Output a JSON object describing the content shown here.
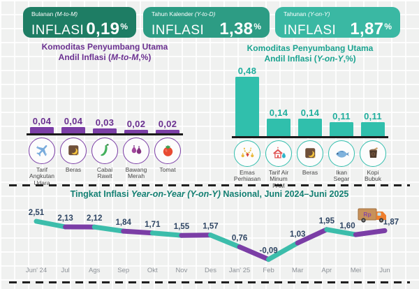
{
  "header_cards": [
    {
      "period_prefix": "Bulanan ",
      "period_italic": "(M-to-M)",
      "label": "INFLASI",
      "value": "0,19",
      "unit": "%",
      "bg": "#1e7d64"
    },
    {
      "period_prefix": "Tahun Kalender ",
      "period_italic": "(Y-to-D)",
      "label": "INFLASI",
      "value": "1,38",
      "unit": "%",
      "bg": "#2d9c84"
    },
    {
      "period_prefix": "Tahunan ",
      "period_italic": "(Y-on-Y)",
      "label": "INFLASI",
      "value": "1,87",
      "unit": "%",
      "bg": "#3ab8a3"
    }
  ],
  "chart_data": [
    {
      "type": "bar",
      "id": "mtm-commodities",
      "title_line1": "Komoditas Penyumbang Utama",
      "title_line2_prefix": "Andil Inflasi (",
      "title_line2_italic": "M-to-M",
      "title_line2_suffix": ",%)",
      "categories": [
        "Tarif Angkutan Udara",
        "Beras",
        "Cabai Rawit",
        "Bawang Merah",
        "Tomat"
      ],
      "values": [
        0.04,
        0.04,
        0.03,
        0.02,
        0.02
      ],
      "value_labels": [
        "0,04",
        "0,04",
        "0,03",
        "0,02",
        "0,02"
      ],
      "icons": [
        "airplane-icon",
        "rice-sack-icon",
        "chili-icon",
        "shallot-icon",
        "tomato-icon"
      ],
      "bar_color": "#7b3ea6",
      "label_color": "#6a3090",
      "icon_border": "#7b3ea6",
      "ylim": [
        0,
        0.05
      ],
      "grid": false,
      "xlabel": "",
      "ylabel": ""
    },
    {
      "type": "bar",
      "id": "yoy-commodities",
      "title_line1": "Komoditas Penyumbang Utama",
      "title_line2_prefix": "Andil Inflasi (",
      "title_line2_italic": "Y-on-Y",
      "title_line2_suffix": ",%)",
      "categories": [
        "Emas Perhiasan",
        "Tarif Air Minum PAM",
        "Beras",
        "Ikan Segar",
        "Kopi Bubuk"
      ],
      "values": [
        0.48,
        0.14,
        0.14,
        0.11,
        0.11
      ],
      "value_labels": [
        "0,48",
        "0,14",
        "0,14",
        "0,11",
        "0,11"
      ],
      "icons": [
        "gold-jewelry-icon",
        "water-tariff-icon",
        "rice-sack-icon",
        "fresh-fish-icon",
        "ground-coffee-icon"
      ],
      "bar_color": "#30bfac",
      "label_color": "#1fae9d",
      "icon_border": "#33bfae",
      "ylim": [
        0,
        0.5
      ],
      "grid": false,
      "xlabel": "",
      "ylabel": ""
    },
    {
      "type": "line",
      "id": "yoy-national-trend",
      "title": "Tingkat Inflasi Year-on-Year (Y-on-Y) Nasional, Juni 2024–Juni 2025",
      "title_prefix": "Tingkat Inflasi ",
      "title_italic": "Year-on-Year (Y-on-Y)",
      "title_suffix": " Nasional, Juni 2024–Juni 2025",
      "categories": [
        "Jun' 24",
        "Jul",
        "Ags",
        "Sep",
        "Okt",
        "Nov",
        "Des",
        "Jan' 25",
        "Feb",
        "Mar",
        "Apr",
        "Mei",
        "Jun"
      ],
      "values": [
        2.51,
        2.13,
        2.12,
        1.84,
        1.71,
        1.55,
        1.57,
        0.76,
        -0.09,
        1.03,
        1.95,
        1.6,
        1.87
      ],
      "value_labels": [
        "2,51",
        "2,13",
        "2,12",
        "1,84",
        "1,71",
        "1,55",
        "1,57",
        "0,76",
        "-0,09",
        "1,03",
        "1,95",
        "1,60",
        "1,87"
      ],
      "segment_colors": [
        "#3cbdab",
        "#7b3ea6"
      ],
      "value_label_color": "#2e4563",
      "axis_label_color": "#8d9298",
      "annotation_icon": "delivery-truck-icon",
      "annotation_icon_text": "Rp",
      "ylim": [
        -0.5,
        3
      ],
      "grid": false,
      "legend": "none"
    }
  ]
}
